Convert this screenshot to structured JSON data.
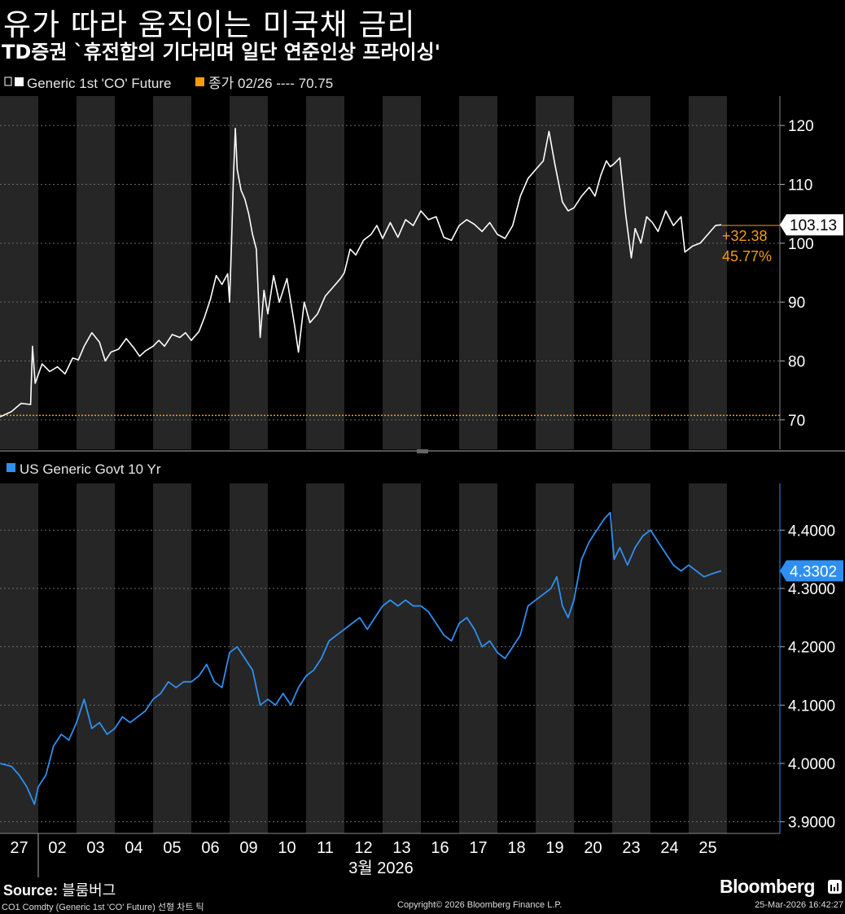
{
  "header": {
    "title": "유가 따라 움직이는 미국채 금리",
    "subtitle": "TD증권 `휴전합의 기다리며 일단 연준인상 프라이싱'"
  },
  "legend": {
    "top_series": "Generic 1st 'CO' Future",
    "top_reference": "종가 02/26 ---- 70.75",
    "bottom_series": "US Generic Govt 10 Yr"
  },
  "colors": {
    "oil": "#ffffff",
    "reference": "#f39c12",
    "yield": "#2f8ff0",
    "shade": "#262626",
    "background": "#000000"
  },
  "footer": {
    "source_label": "Source:",
    "source_value": "블룸버그",
    "note": "CO1 Comdty (Generic 1st 'CO' Future) 선형 차트 틱",
    "copyright": "Copyright© 2026 Bloomberg Finance L.P.",
    "timestamp": "25-Mar-2026 16:42:27",
    "brand": "Bloomberg"
  },
  "chart_data": [
    {
      "type": "line",
      "name": "Generic 1st 'CO' Future",
      "ylim": [
        65,
        125
      ],
      "yticks": [
        70,
        80,
        90,
        100,
        110,
        120
      ],
      "last_value": "103.13",
      "change_abs": "+32.38",
      "change_pct": "45.77%",
      "reference_line": {
        "label": "종가 02/26",
        "value": 70.75
      },
      "x_categories": [
        "27",
        "02",
        "03",
        "04",
        "05",
        "06",
        "09",
        "10",
        "11",
        "12",
        "13",
        "16",
        "17",
        "18",
        "19",
        "20",
        "23",
        "24",
        "25"
      ],
      "x_month_label": "3월 2026",
      "x_start": 0,
      "x_end": 18.9,
      "points": [
        [
          0.0,
          70.5
        ],
        [
          0.3,
          71.4
        ],
        [
          0.55,
          72.8
        ],
        [
          0.8,
          72.6
        ],
        [
          0.85,
          82.5
        ],
        [
          0.92,
          76.2
        ],
        [
          1.1,
          79.5
        ],
        [
          1.3,
          78.2
        ],
        [
          1.5,
          79.0
        ],
        [
          1.7,
          77.8
        ],
        [
          1.9,
          80.5
        ],
        [
          2.05,
          80.2
        ],
        [
          2.2,
          82.5
        ],
        [
          2.4,
          84.8
        ],
        [
          2.6,
          83.2
        ],
        [
          2.75,
          80.0
        ],
        [
          2.9,
          81.5
        ],
        [
          3.1,
          82.0
        ],
        [
          3.3,
          83.8
        ],
        [
          3.5,
          82.2
        ],
        [
          3.65,
          80.8
        ],
        [
          3.8,
          81.7
        ],
        [
          4.0,
          82.5
        ],
        [
          4.15,
          83.5
        ],
        [
          4.3,
          82.5
        ],
        [
          4.5,
          84.5
        ],
        [
          4.7,
          84.0
        ],
        [
          4.85,
          84.8
        ],
        [
          5.0,
          83.5
        ],
        [
          5.2,
          85.0
        ],
        [
          5.35,
          87.5
        ],
        [
          5.5,
          90.5
        ],
        [
          5.65,
          94.5
        ],
        [
          5.8,
          93.0
        ],
        [
          5.95,
          94.8
        ],
        [
          6.0,
          90.0
        ],
        [
          6.05,
          99.5
        ],
        [
          6.1,
          111.0
        ],
        [
          6.15,
          119.5
        ],
        [
          6.2,
          112.5
        ],
        [
          6.3,
          109.0
        ],
        [
          6.4,
          107.5
        ],
        [
          6.5,
          105.0
        ],
        [
          6.6,
          101.5
        ],
        [
          6.7,
          99.0
        ],
        [
          6.8,
          84.0
        ],
        [
          6.9,
          92.0
        ],
        [
          7.0,
          88.0
        ],
        [
          7.15,
          94.5
        ],
        [
          7.3,
          90.0
        ],
        [
          7.5,
          94.0
        ],
        [
          7.7,
          86.0
        ],
        [
          7.8,
          81.5
        ],
        [
          7.95,
          90.0
        ],
        [
          8.1,
          86.5
        ],
        [
          8.3,
          88.0
        ],
        [
          8.5,
          91.0
        ],
        [
          8.7,
          92.5
        ],
        [
          8.9,
          94.0
        ],
        [
          9.0,
          95.0
        ],
        [
          9.15,
          99.0
        ],
        [
          9.3,
          98.0
        ],
        [
          9.5,
          100.5
        ],
        [
          9.7,
          101.5
        ],
        [
          9.85,
          103.0
        ],
        [
          10.0,
          100.8
        ],
        [
          10.2,
          103.5
        ],
        [
          10.4,
          101.0
        ],
        [
          10.6,
          104.0
        ],
        [
          10.8,
          103.0
        ],
        [
          11.0,
          105.5
        ],
        [
          11.2,
          104.0
        ],
        [
          11.4,
          104.5
        ],
        [
          11.6,
          101.0
        ],
        [
          11.8,
          100.5
        ],
        [
          12.0,
          103.0
        ],
        [
          12.2,
          104.0
        ],
        [
          12.4,
          103.2
        ],
        [
          12.6,
          102.0
        ],
        [
          12.8,
          103.5
        ],
        [
          13.0,
          101.5
        ],
        [
          13.2,
          100.8
        ],
        [
          13.4,
          103.0
        ],
        [
          13.6,
          108.0
        ],
        [
          13.8,
          111.0
        ],
        [
          14.0,
          112.5
        ],
        [
          14.2,
          114.0
        ],
        [
          14.35,
          119.0
        ],
        [
          14.5,
          113.5
        ],
        [
          14.7,
          107.0
        ],
        [
          14.85,
          105.5
        ],
        [
          15.0,
          106.0
        ],
        [
          15.2,
          108.0
        ],
        [
          15.4,
          109.5
        ],
        [
          15.55,
          108.0
        ],
        [
          15.7,
          111.5
        ],
        [
          15.85,
          114.0
        ],
        [
          15.95,
          113.0
        ],
        [
          16.05,
          113.5
        ],
        [
          16.2,
          114.5
        ],
        [
          16.35,
          105.0
        ],
        [
          16.5,
          97.5
        ],
        [
          16.6,
          102.5
        ],
        [
          16.75,
          100.0
        ],
        [
          16.9,
          104.5
        ],
        [
          17.05,
          103.5
        ],
        [
          17.2,
          102.0
        ],
        [
          17.4,
          105.5
        ],
        [
          17.6,
          103.0
        ],
        [
          17.8,
          104.5
        ],
        [
          17.9,
          98.5
        ],
        [
          18.1,
          99.5
        ],
        [
          18.3,
          100.0
        ],
        [
          18.5,
          101.5
        ],
        [
          18.7,
          103.0
        ],
        [
          18.85,
          103.13
        ]
      ]
    },
    {
      "type": "line",
      "name": "US Generic Govt 10 Yr",
      "ylim": [
        3.88,
        4.48
      ],
      "yticks": [
        3.9,
        4.0,
        4.1,
        4.2,
        4.3,
        4.4
      ],
      "ytick_labels": [
        "3.9000",
        "4.0000",
        "4.1000",
        "4.2000",
        "4.3000",
        "4.4000"
      ],
      "last_value": "4.3302",
      "x_categories": [
        "27",
        "02",
        "03",
        "04",
        "05",
        "06",
        "09",
        "10",
        "11",
        "12",
        "13",
        "16",
        "17",
        "18",
        "19",
        "20",
        "23",
        "24",
        "25"
      ],
      "x_start": 0,
      "x_end": 18.9,
      "points": [
        [
          0.0,
          4.0
        ],
        [
          0.3,
          3.995
        ],
        [
          0.5,
          3.98
        ],
        [
          0.7,
          3.96
        ],
        [
          0.9,
          3.93
        ],
        [
          1.0,
          3.96
        ],
        [
          1.2,
          3.98
        ],
        [
          1.4,
          4.03
        ],
        [
          1.6,
          4.05
        ],
        [
          1.8,
          4.04
        ],
        [
          2.0,
          4.07
        ],
        [
          2.2,
          4.11
        ],
        [
          2.4,
          4.06
        ],
        [
          2.6,
          4.07
        ],
        [
          2.8,
          4.05
        ],
        [
          3.0,
          4.06
        ],
        [
          3.2,
          4.08
        ],
        [
          3.4,
          4.07
        ],
        [
          3.6,
          4.08
        ],
        [
          3.8,
          4.09
        ],
        [
          4.0,
          4.11
        ],
        [
          4.2,
          4.12
        ],
        [
          4.4,
          4.14
        ],
        [
          4.6,
          4.13
        ],
        [
          4.8,
          4.14
        ],
        [
          5.0,
          4.14
        ],
        [
          5.2,
          4.15
        ],
        [
          5.4,
          4.17
        ],
        [
          5.6,
          4.14
        ],
        [
          5.8,
          4.13
        ],
        [
          6.0,
          4.19
        ],
        [
          6.2,
          4.2
        ],
        [
          6.4,
          4.18
        ],
        [
          6.6,
          4.16
        ],
        [
          6.8,
          4.1
        ],
        [
          7.0,
          4.11
        ],
        [
          7.2,
          4.1
        ],
        [
          7.4,
          4.12
        ],
        [
          7.6,
          4.1
        ],
        [
          7.8,
          4.13
        ],
        [
          8.0,
          4.15
        ],
        [
          8.2,
          4.16
        ],
        [
          8.4,
          4.18
        ],
        [
          8.6,
          4.21
        ],
        [
          8.8,
          4.22
        ],
        [
          9.0,
          4.23
        ],
        [
          9.2,
          4.24
        ],
        [
          9.4,
          4.25
        ],
        [
          9.6,
          4.23
        ],
        [
          9.8,
          4.25
        ],
        [
          10.0,
          4.27
        ],
        [
          10.2,
          4.28
        ],
        [
          10.4,
          4.27
        ],
        [
          10.6,
          4.28
        ],
        [
          10.8,
          4.27
        ],
        [
          11.0,
          4.27
        ],
        [
          11.2,
          4.26
        ],
        [
          11.4,
          4.24
        ],
        [
          11.6,
          4.22
        ],
        [
          11.8,
          4.21
        ],
        [
          12.0,
          4.24
        ],
        [
          12.2,
          4.25
        ],
        [
          12.4,
          4.23
        ],
        [
          12.6,
          4.2
        ],
        [
          12.8,
          4.21
        ],
        [
          13.0,
          4.19
        ],
        [
          13.2,
          4.18
        ],
        [
          13.4,
          4.2
        ],
        [
          13.6,
          4.22
        ],
        [
          13.8,
          4.27
        ],
        [
          14.0,
          4.28
        ],
        [
          14.2,
          4.29
        ],
        [
          14.4,
          4.3
        ],
        [
          14.55,
          4.32
        ],
        [
          14.7,
          4.27
        ],
        [
          14.85,
          4.25
        ],
        [
          15.0,
          4.28
        ],
        [
          15.2,
          4.35
        ],
        [
          15.4,
          4.38
        ],
        [
          15.6,
          4.4
        ],
        [
          15.8,
          4.42
        ],
        [
          15.95,
          4.43
        ],
        [
          16.05,
          4.35
        ],
        [
          16.2,
          4.37
        ],
        [
          16.4,
          4.34
        ],
        [
          16.6,
          4.37
        ],
        [
          16.8,
          4.39
        ],
        [
          17.0,
          4.4
        ],
        [
          17.2,
          4.38
        ],
        [
          17.4,
          4.36
        ],
        [
          17.6,
          4.34
        ],
        [
          17.8,
          4.33
        ],
        [
          18.0,
          4.34
        ],
        [
          18.2,
          4.33
        ],
        [
          18.4,
          4.32
        ],
        [
          18.6,
          4.325
        ],
        [
          18.85,
          4.3302
        ]
      ]
    }
  ]
}
